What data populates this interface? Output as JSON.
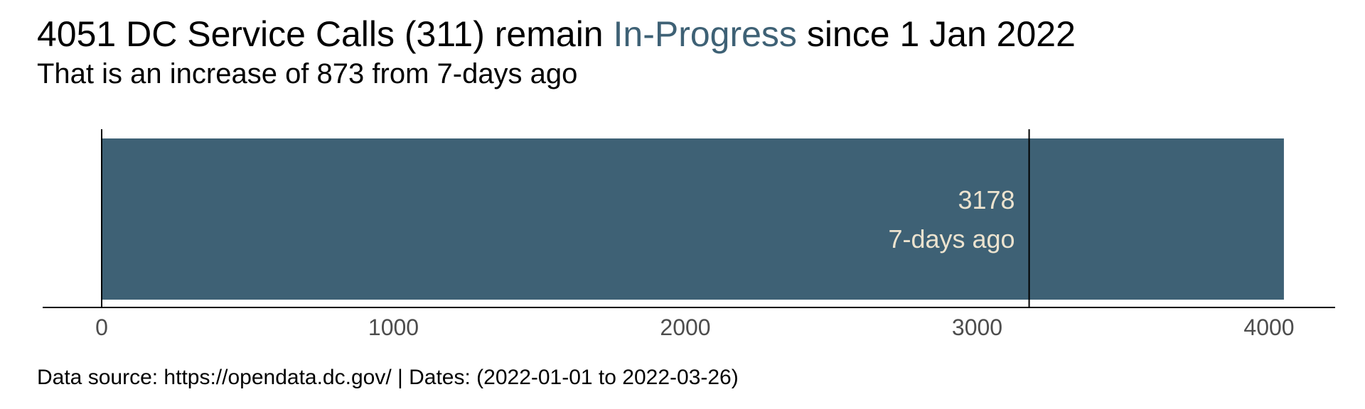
{
  "title": {
    "prefix": "4051 DC Service Calls (311) remain ",
    "highlight": "In-Progress",
    "suffix": " since 1 Jan 2022"
  },
  "subtitle": "That is an increase of 873 from 7-days ago",
  "caption": "Data source: https://opendata.dc.gov/ | Dates: (2022-01-01 to 2022-03-26)",
  "colors": {
    "bar": "#3e6175",
    "highlight": "#3e6175",
    "annotation_text": "#ece3cf",
    "axis": "#000000",
    "tick_text": "#4d4d4d"
  },
  "chart_data": {
    "type": "bar",
    "orientation": "horizontal",
    "values": [
      4051
    ],
    "reference": {
      "value": 3178,
      "label_value": "3178",
      "label_text": "7-days ago"
    },
    "xlim": [
      0,
      4051
    ],
    "ticks": [
      0,
      1000,
      2000,
      3000,
      4000
    ],
    "tick_labels": [
      "0",
      "1000",
      "2000",
      "3000",
      "4000"
    ],
    "grid": false
  }
}
